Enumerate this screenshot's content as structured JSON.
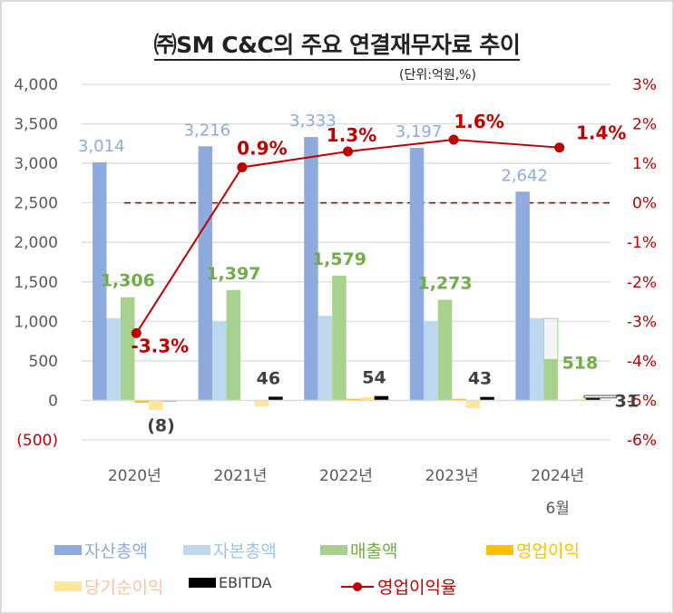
{
  "title": "㈜SM C&C의 주요 연결재무자료 추이",
  "unit_label": "(단위:억원,%)",
  "colors": {
    "assets": "#8faadc",
    "equity": "#bdd7ee",
    "revenue": "#a9d18e",
    "op_income": "#ffc000",
    "net_income": "#ffe699",
    "ebitda": "#000000",
    "margin": "#c00000",
    "assets_label": "#8faadc",
    "revenue_label": "#70ad47",
    "ebitda_label": "#404040",
    "margin_label": "#c00000",
    "axis_text": "#595959",
    "grid": "#d9d9d9"
  },
  "chart_data": {
    "type": "bar+line",
    "title": "㈜SM C&C의 주요 연결재무자료 추이",
    "categories": [
      "2020년",
      "2021년",
      "2022년",
      "2023년",
      "2024년"
    ],
    "category_sublabels": [
      "",
      "",
      "",
      "",
      "6월"
    ],
    "y_left": {
      "range": [
        -500,
        4000
      ],
      "ticks": [
        4000,
        3500,
        3000,
        2500,
        2000,
        1500,
        1000,
        500,
        0,
        -500
      ],
      "tick_labels": [
        "4,000",
        "3,500",
        "3,000",
        "2,500",
        "2,000",
        "1,500",
        "1,000",
        "500",
        "0",
        "(500)"
      ]
    },
    "y_right": {
      "range": [
        -6,
        3
      ],
      "ticks": [
        3,
        2,
        1,
        0,
        -1,
        -2,
        -3,
        -4,
        -5,
        -6
      ],
      "tick_labels": [
        "3%",
        "2%",
        "1%",
        "0%",
        "-1%",
        "-2%",
        "-3%",
        "-4%",
        "-5%",
        "-6%"
      ]
    },
    "grid": true,
    "legend_position": "bottom",
    "series": [
      {
        "key": "assets",
        "name": "자산총액",
        "type": "bar",
        "values": [
          3014,
          3216,
          3333,
          3197,
          2642
        ],
        "labels": [
          "3,014",
          "3,216",
          "3,333",
          "3,197",
          "2,642"
        ]
      },
      {
        "key": "equity",
        "name": "자본총액",
        "type": "bar",
        "values": [
          1040,
          1000,
          1070,
          1000,
          1040
        ],
        "labels": []
      },
      {
        "key": "revenue",
        "name": "매출액",
        "type": "bar",
        "values": [
          1306,
          1397,
          1579,
          1273,
          518
        ],
        "annualized": [
          null,
          null,
          null,
          null,
          1036
        ],
        "labels": [
          "1,306",
          "1,397",
          "1,579",
          "1,273",
          "518"
        ]
      },
      {
        "key": "op_income",
        "name": "영업이익",
        "type": "bar",
        "values": [
          -30,
          5,
          20,
          20,
          5
        ],
        "labels": []
      },
      {
        "key": "net_income",
        "name": "당기순이익",
        "type": "bar",
        "values": [
          -120,
          -80,
          40,
          -100,
          15
        ],
        "labels": []
      },
      {
        "key": "ebitda",
        "name": "EBITDA",
        "type": "bar",
        "values": [
          -8,
          46,
          54,
          43,
          31
        ],
        "annualized": [
          null,
          null,
          null,
          null,
          62
        ],
        "labels": [
          "(8)",
          "46",
          "54",
          "43",
          "31"
        ]
      },
      {
        "key": "margin",
        "name": "영업이익율",
        "type": "line",
        "axis": "right",
        "values": [
          -3.3,
          0.9,
          1.3,
          1.6,
          1.4
        ],
        "labels": [
          "-3.3%",
          "0.9%",
          "1.3%",
          "1.6%",
          "1.4%"
        ]
      }
    ]
  }
}
